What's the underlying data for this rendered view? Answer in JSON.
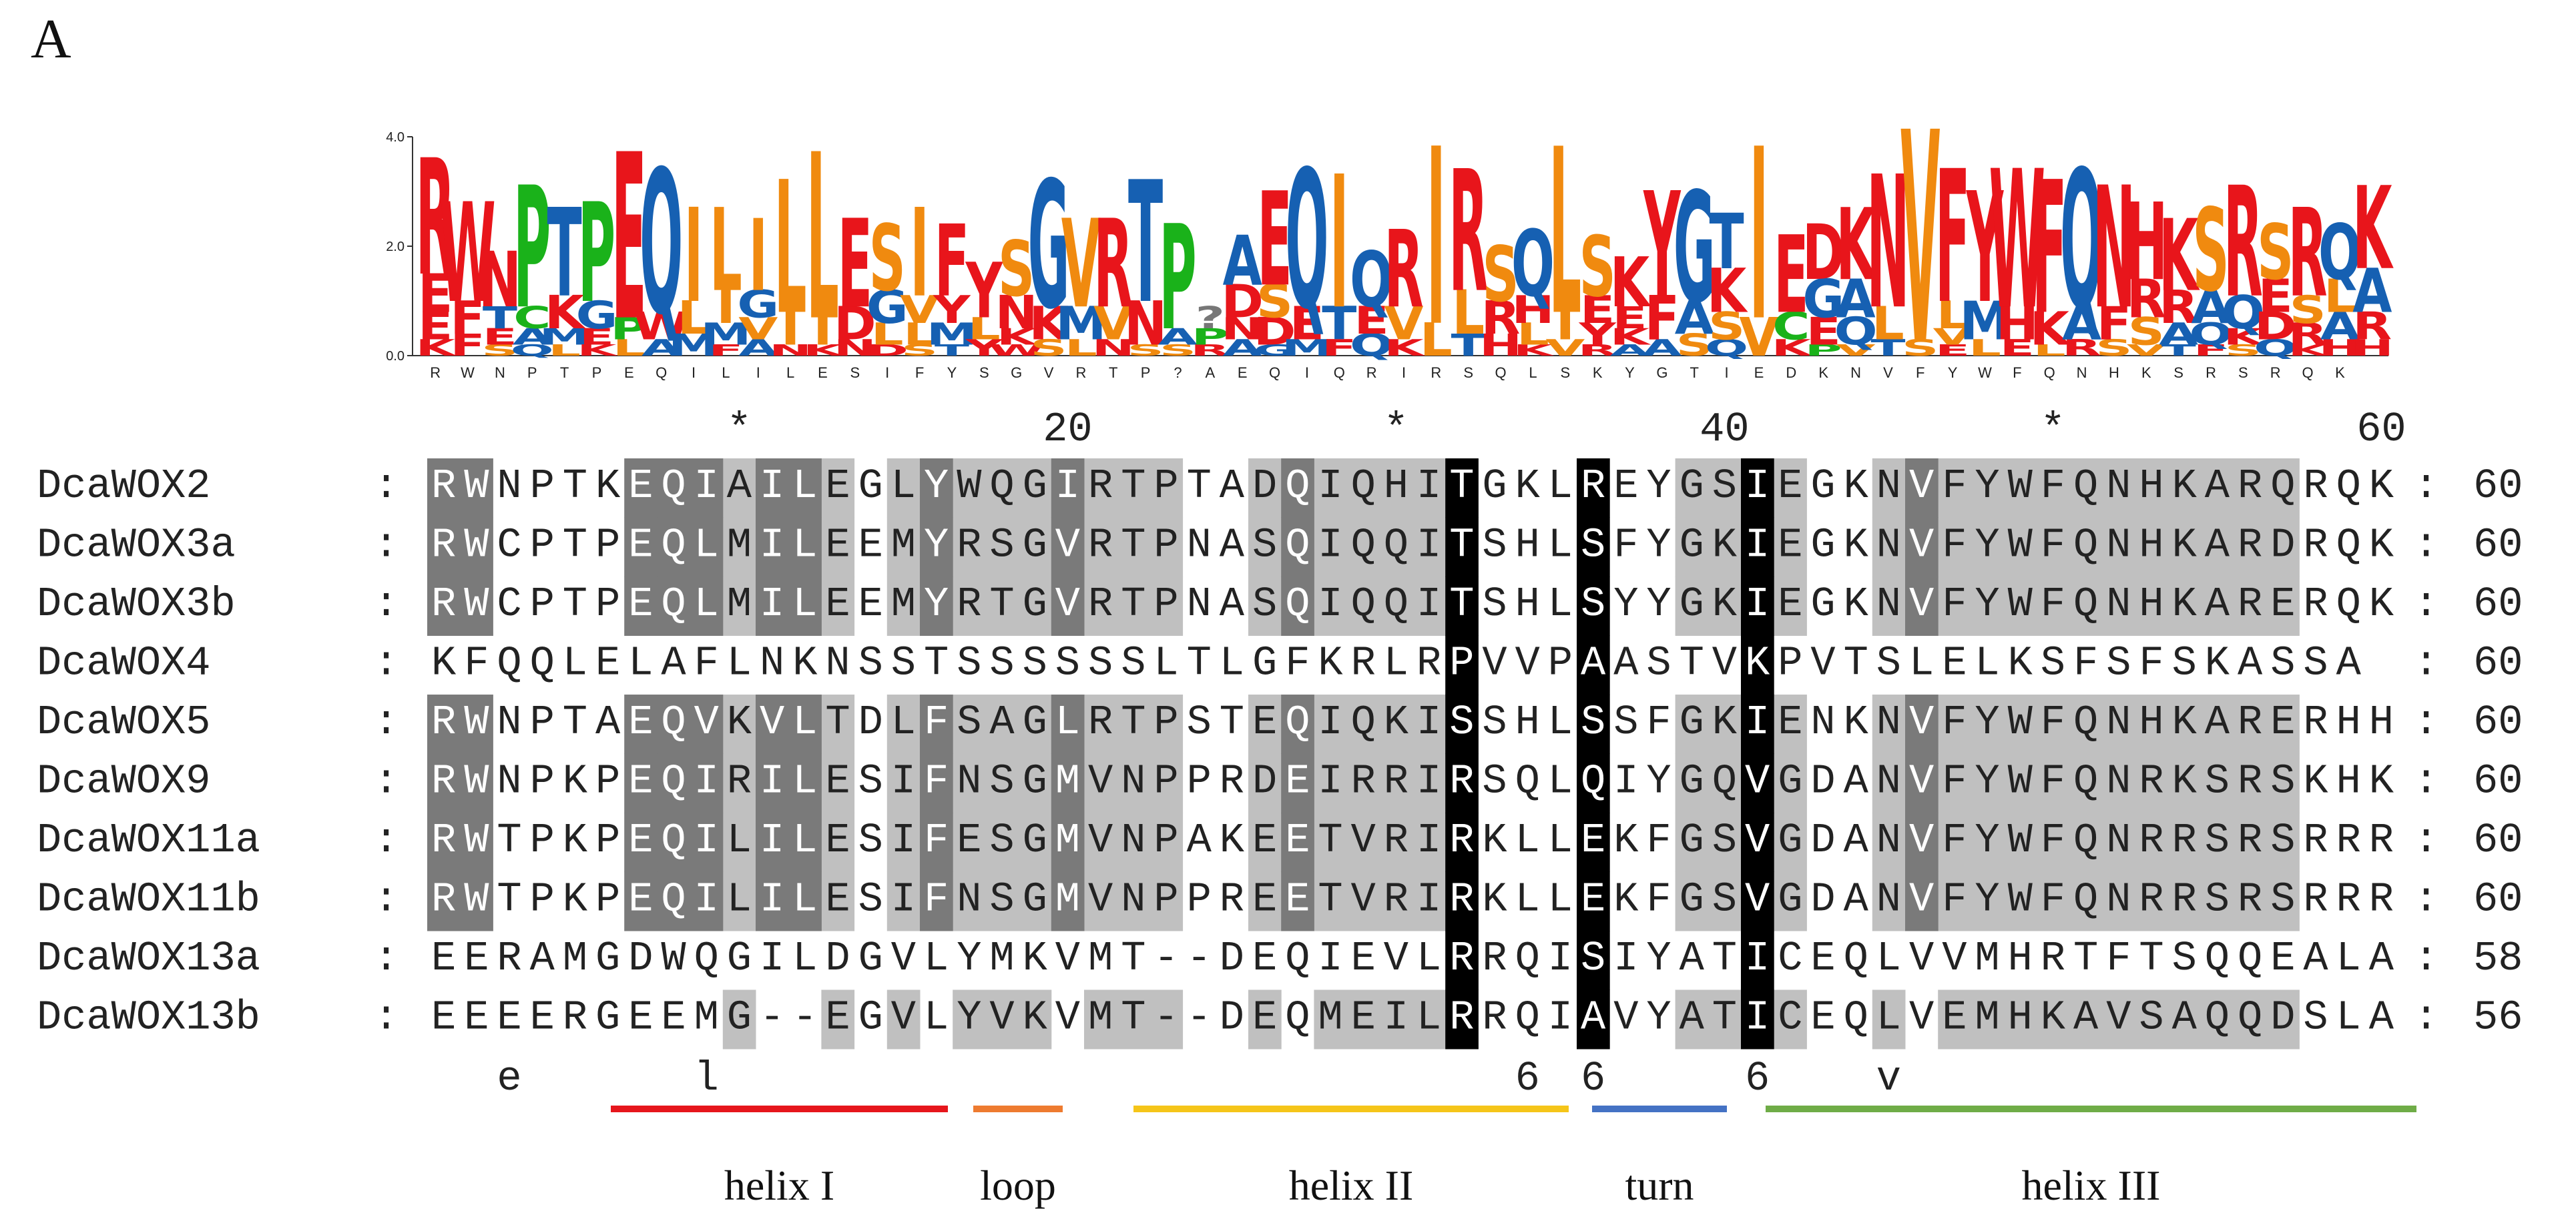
{
  "panel_label": "A",
  "logo": {
    "ymax": 4.0,
    "ticks": [
      "4.0",
      "2.0",
      "0.0"
    ],
    "consensus": "RWNPTPEQILILESIFYSGVRTP?AEQIQRIRSQLSKYGTIEDKNVFYWFQNHKSRSRQK",
    "colors": {
      "red": "#e8151b",
      "blue": "#1660b2",
      "green": "#1ab21a",
      "orange": "#f08a0f"
    },
    "columns": [
      [
        [
          "R",
          2.1
        ],
        [
          "E",
          0.7
        ],
        [
          "E",
          0.5
        ],
        [
          "K",
          0.3
        ]
      ],
      [
        [
          "W",
          1.8
        ],
        [
          "F",
          0.6
        ],
        [
          "F",
          0.4
        ]
      ],
      [
        [
          "N",
          1.0
        ],
        [
          "T",
          0.4
        ],
        [
          "E",
          0.3
        ],
        [
          "S",
          0.2
        ]
      ],
      [
        [
          "P",
          2.2
        ],
        [
          "C",
          0.4
        ],
        [
          "A",
          0.3
        ],
        [
          "Q",
          0.2
        ]
      ],
      [
        [
          "T",
          1.6
        ],
        [
          "K",
          0.6
        ],
        [
          "M",
          0.3
        ],
        [
          "L",
          0.2
        ]
      ],
      [
        [
          "P",
          1.8
        ],
        [
          "G",
          0.5
        ],
        [
          "E",
          0.3
        ],
        [
          "K",
          0.2
        ]
      ],
      [
        [
          "E",
          3.0
        ],
        [
          "P",
          0.4
        ],
        [
          "L",
          0.3
        ]
      ],
      [
        [
          "Q",
          2.6
        ],
        [
          "W",
          0.5
        ],
        [
          "A",
          0.3
        ]
      ],
      [
        [
          "I",
          1.7
        ],
        [
          "L",
          0.6
        ],
        [
          "M",
          0.4
        ]
      ],
      [
        [
          "L",
          1.5
        ],
        [
          "I",
          0.6
        ],
        [
          "M",
          0.4
        ],
        [
          "F",
          0.2
        ]
      ],
      [
        [
          "I",
          1.3
        ],
        [
          "G",
          0.5
        ],
        [
          "V",
          0.4
        ],
        [
          "A",
          0.3
        ]
      ],
      [
        [
          "L",
          2.4
        ],
        [
          "I",
          0.6
        ],
        [
          "N",
          0.2
        ]
      ],
      [
        [
          "L",
          3.0
        ],
        [
          "I",
          0.5
        ],
        [
          "K",
          0.2
        ]
      ],
      [
        [
          "E",
          1.6
        ],
        [
          "D",
          0.6
        ],
        [
          "N",
          0.3
        ]
      ],
      [
        [
          "S",
          1.2
        ],
        [
          "G",
          0.6
        ],
        [
          "L",
          0.4
        ],
        [
          "D",
          0.2
        ]
      ],
      [
        [
          "I",
          1.6
        ],
        [
          "V",
          0.5
        ],
        [
          "L",
          0.4
        ],
        [
          "S",
          0.2
        ]
      ],
      [
        [
          "F",
          1.3
        ],
        [
          "Y",
          0.5
        ],
        [
          "M",
          0.4
        ],
        [
          "T",
          0.2
        ]
      ],
      [
        [
          "Y",
          1.0
        ],
        [
          "L",
          0.4
        ],
        [
          "Y",
          0.3
        ]
      ],
      [
        [
          "S",
          1.0
        ],
        [
          "N",
          0.6
        ],
        [
          "K",
          0.3
        ],
        [
          "W",
          0.2
        ]
      ],
      [
        [
          "G",
          2.3
        ],
        [
          "K",
          0.6
        ],
        [
          "S",
          0.3
        ]
      ],
      [
        [
          "V",
          1.6
        ],
        [
          "M",
          0.6
        ],
        [
          "L",
          0.3
        ]
      ],
      [
        [
          "R",
          1.6
        ],
        [
          "V",
          0.6
        ],
        [
          "N",
          0.3
        ]
      ],
      [
        [
          "T",
          2.2
        ],
        [
          "N",
          0.8
        ],
        [
          "S",
          0.2
        ]
      ],
      [
        [
          "P",
          1.9
        ],
        [
          "A",
          0.3
        ],
        [
          "S",
          0.2
        ]
      ],
      [
        [
          "?",
          0.4
        ],
        [
          "P",
          0.3
        ],
        [
          "R",
          0.2
        ]
      ],
      [
        [
          "A",
          0.9
        ],
        [
          "D",
          0.6
        ],
        [
          "N",
          0.4
        ],
        [
          "A",
          0.3
        ]
      ],
      [
        [
          "E",
          1.7
        ],
        [
          "S",
          0.6
        ],
        [
          "D",
          0.5
        ],
        [
          "G",
          0.2
        ]
      ],
      [
        [
          "Q",
          2.5
        ],
        [
          "E",
          0.6
        ],
        [
          "M",
          0.3
        ]
      ],
      [
        [
          "I",
          2.4
        ],
        [
          "T",
          0.6
        ],
        [
          "F",
          0.3
        ]
      ],
      [
        [
          "Q",
          1.0
        ],
        [
          "E",
          0.5
        ],
        [
          "Q",
          0.4
        ]
      ],
      [
        [
          "R",
          1.4
        ],
        [
          "V",
          0.6
        ],
        [
          "K",
          0.3
        ]
      ],
      [
        [
          "I",
          3.2
        ],
        [
          "L",
          0.6
        ]
      ],
      [
        [
          "R",
          2.2
        ],
        [
          "L",
          0.8
        ],
        [
          "T",
          0.4
        ]
      ],
      [
        [
          "S",
          1.0
        ],
        [
          "R",
          0.6
        ],
        [
          "H",
          0.4
        ]
      ],
      [
        [
          "Q",
          1.2
        ],
        [
          "H",
          0.5
        ],
        [
          "L",
          0.4
        ],
        [
          "K",
          0.2
        ]
      ],
      [
        [
          "L",
          3.0
        ],
        [
          "I",
          0.5
        ],
        [
          "V",
          0.3
        ]
      ],
      [
        [
          "S",
          1.1
        ],
        [
          "E",
          0.5
        ],
        [
          "Y",
          0.4
        ],
        [
          "R",
          0.2
        ]
      ],
      [
        [
          "K",
          0.9
        ],
        [
          "E",
          0.4
        ],
        [
          "K",
          0.3
        ],
        [
          "A",
          0.2
        ]
      ],
      [
        [
          "Y",
          1.9
        ],
        [
          "F",
          0.8
        ],
        [
          "A",
          0.3
        ]
      ],
      [
        [
          "G",
          2.0
        ],
        [
          "A",
          0.6
        ],
        [
          "S",
          0.4
        ]
      ],
      [
        [
          "T",
          1.0
        ],
        [
          "K",
          0.8
        ],
        [
          "S",
          0.5
        ],
        [
          "Q",
          0.3
        ]
      ],
      [
        [
          "I",
          3.1
        ],
        [
          "V",
          0.7
        ]
      ],
      [
        [
          "E",
          1.4
        ],
        [
          "C",
          0.5
        ],
        [
          "K",
          0.3
        ]
      ],
      [
        [
          "D",
          1.0
        ],
        [
          "G",
          0.7
        ],
        [
          "E",
          0.5
        ],
        [
          "P",
          0.2
        ]
      ],
      [
        [
          "K",
          1.3
        ],
        [
          "A",
          0.7
        ],
        [
          "Q",
          0.5
        ],
        [
          "V",
          0.2
        ]
      ],
      [
        [
          "N",
          2.4
        ],
        [
          "L",
          0.6
        ],
        [
          "T",
          0.3
        ]
      ],
      [
        [
          "V",
          3.8
        ],
        [
          "S",
          0.3
        ]
      ],
      [
        [
          "F",
          2.4
        ],
        [
          "L",
          0.5
        ],
        [
          "V",
          0.3
        ],
        [
          "E",
          0.2
        ]
      ],
      [
        [
          "Y",
          2.0
        ],
        [
          "M",
          0.7
        ],
        [
          "L",
          0.3
        ]
      ],
      [
        [
          "W",
          2.5
        ],
        [
          "H",
          0.6
        ],
        [
          "E",
          0.3
        ]
      ],
      [
        [
          "F",
          2.4
        ],
        [
          "K",
          0.6
        ],
        [
          "L",
          0.2
        ]
      ],
      [
        [
          "Q",
          2.5
        ],
        [
          "A",
          0.6
        ],
        [
          "R",
          0.3
        ]
      ],
      [
        [
          "N",
          2.2
        ],
        [
          "F",
          0.6
        ],
        [
          "S",
          0.3
        ]
      ],
      [
        [
          "H",
          1.4
        ],
        [
          "R",
          0.7
        ],
        [
          "S",
          0.5
        ],
        [
          "V",
          0.2
        ]
      ],
      [
        [
          "K",
          1.3
        ],
        [
          "R",
          0.6
        ],
        [
          "A",
          0.4
        ],
        [
          "T",
          0.2
        ]
      ],
      [
        [
          "S",
          1.5
        ],
        [
          "A",
          0.6
        ],
        [
          "Q",
          0.4
        ],
        [
          "F",
          0.2
        ]
      ],
      [
        [
          "R",
          2.0
        ],
        [
          "Q",
          0.6
        ],
        [
          "K",
          0.3
        ],
        [
          "S",
          0.2
        ]
      ],
      [
        [
          "S",
          1.0
        ],
        [
          "E",
          0.6
        ],
        [
          "D",
          0.5
        ],
        [
          "Q",
          0.3
        ]
      ],
      [
        [
          "R",
          1.6
        ],
        [
          "S",
          0.5
        ],
        [
          "R",
          0.4
        ],
        [
          "K",
          0.2
        ]
      ],
      [
        [
          "Q",
          1.0
        ],
        [
          "L",
          0.6
        ],
        [
          "A",
          0.5
        ],
        [
          "H",
          0.3
        ]
      ],
      [
        [
          "K",
          1.5
        ],
        [
          "A",
          0.8
        ],
        [
          "R",
          0.5
        ],
        [
          "H",
          0.3
        ]
      ]
    ]
  },
  "alignment": {
    "ruler": [
      "*",
      "20",
      "*",
      "40",
      "*",
      "60"
    ],
    "sequences": [
      {
        "name": "DcaWOX2",
        "seq": "RWNPTKEQIAILEGLYWQGIRTPTADQIQHITGKLREYGSIEGKNVFYWFQNHKARQRQK",
        "end": "60"
      },
      {
        "name": "DcaWOX3a",
        "seq": "RWCPTPEQLMILEEMYRSGVRTPNASQIQQITSHLSFYGKIEGKNVFYWFQNHKARDRQK",
        "end": "60"
      },
      {
        "name": "DcaWOX3b",
        "seq": "RWCPTPEQLMILEEMYRTGVRTPNASQIQQITSHLSYYGKIEGKNVFYWFQNHKARERQK",
        "end": "60"
      },
      {
        "name": "DcaWOX4",
        "seq": "KFQQLELAFLNKNSSTSSSSSSLTLGFKRLRPVVPAASTVKPVTSLELKSFSFSKASSA",
        "end": "60"
      },
      {
        "name": "DcaWOX5",
        "seq": "RWNPTAEQVKVLTDLFSAGLRTPSTEQIQKISSHLSSFGKIENKNVFYWFQNHKARERHH",
        "end": "60"
      },
      {
        "name": "DcaWOX9",
        "seq": "RWNPKPEQIRILESIFNSGMVNPPRDEIRRIRSQLQIYGQVGDANVFYWFQNRKSRSKHK",
        "end": "60"
      },
      {
        "name": "DcaWOX11a",
        "seq": "RWTPKPEQILILESIFESGMVNPAKEETVRIRKLLEKFGSVGDANVFYWFQNRRSRSRRR",
        "end": "60"
      },
      {
        "name": "DcaWOX11b",
        "seq": "RWTPKPEQILILESIFNSGMVNPPREETVRIRKLLEKFGSVGDANVFYWFQNRRSRSRRR",
        "end": "60"
      },
      {
        "name": "DcaWOX13a",
        "seq": "EERAMGDWQGILDGVLYMKVMT--DEQIEVLRRQISIYATICEQLVVMHRTFTSQQEALA",
        "end": "58"
      },
      {
        "name": "DcaWOX13b",
        "seq": "EEEERGEEMG--EGVLYVKVMT--DEQMEILRRQIAVYATICEQLVEMHKAVSAQQDSLA",
        "end": "56"
      }
    ],
    "colon": ":",
    "consensus_marks": [
      "e",
      "l",
      "6",
      "6",
      "6",
      "v"
    ],
    "shading": {
      "black": [
        31,
        35,
        40
      ],
      "dark": [
        0,
        1,
        6,
        7,
        8,
        10,
        11,
        15,
        19,
        26,
        45
      ],
      "light": [
        9,
        12,
        14,
        16,
        17,
        18,
        20,
        21,
        22,
        25,
        27,
        28,
        29,
        30,
        38,
        39,
        41,
        44,
        46,
        47,
        48,
        49,
        50,
        51,
        52,
        53,
        54,
        55,
        56
      ]
    },
    "colors": {
      "black": "#000000",
      "dark": "#7a7a7a",
      "light": "#c0c0c0"
    }
  },
  "structure": [
    {
      "label": "helix I",
      "color": "#e6161c"
    },
    {
      "label": "loop",
      "color": "#ee7b30"
    },
    {
      "label": "helix II",
      "color": "#f5c519"
    },
    {
      "label": "turn",
      "color": "#4472c4"
    },
    {
      "label": "helix III",
      "color": "#6fac47"
    }
  ]
}
